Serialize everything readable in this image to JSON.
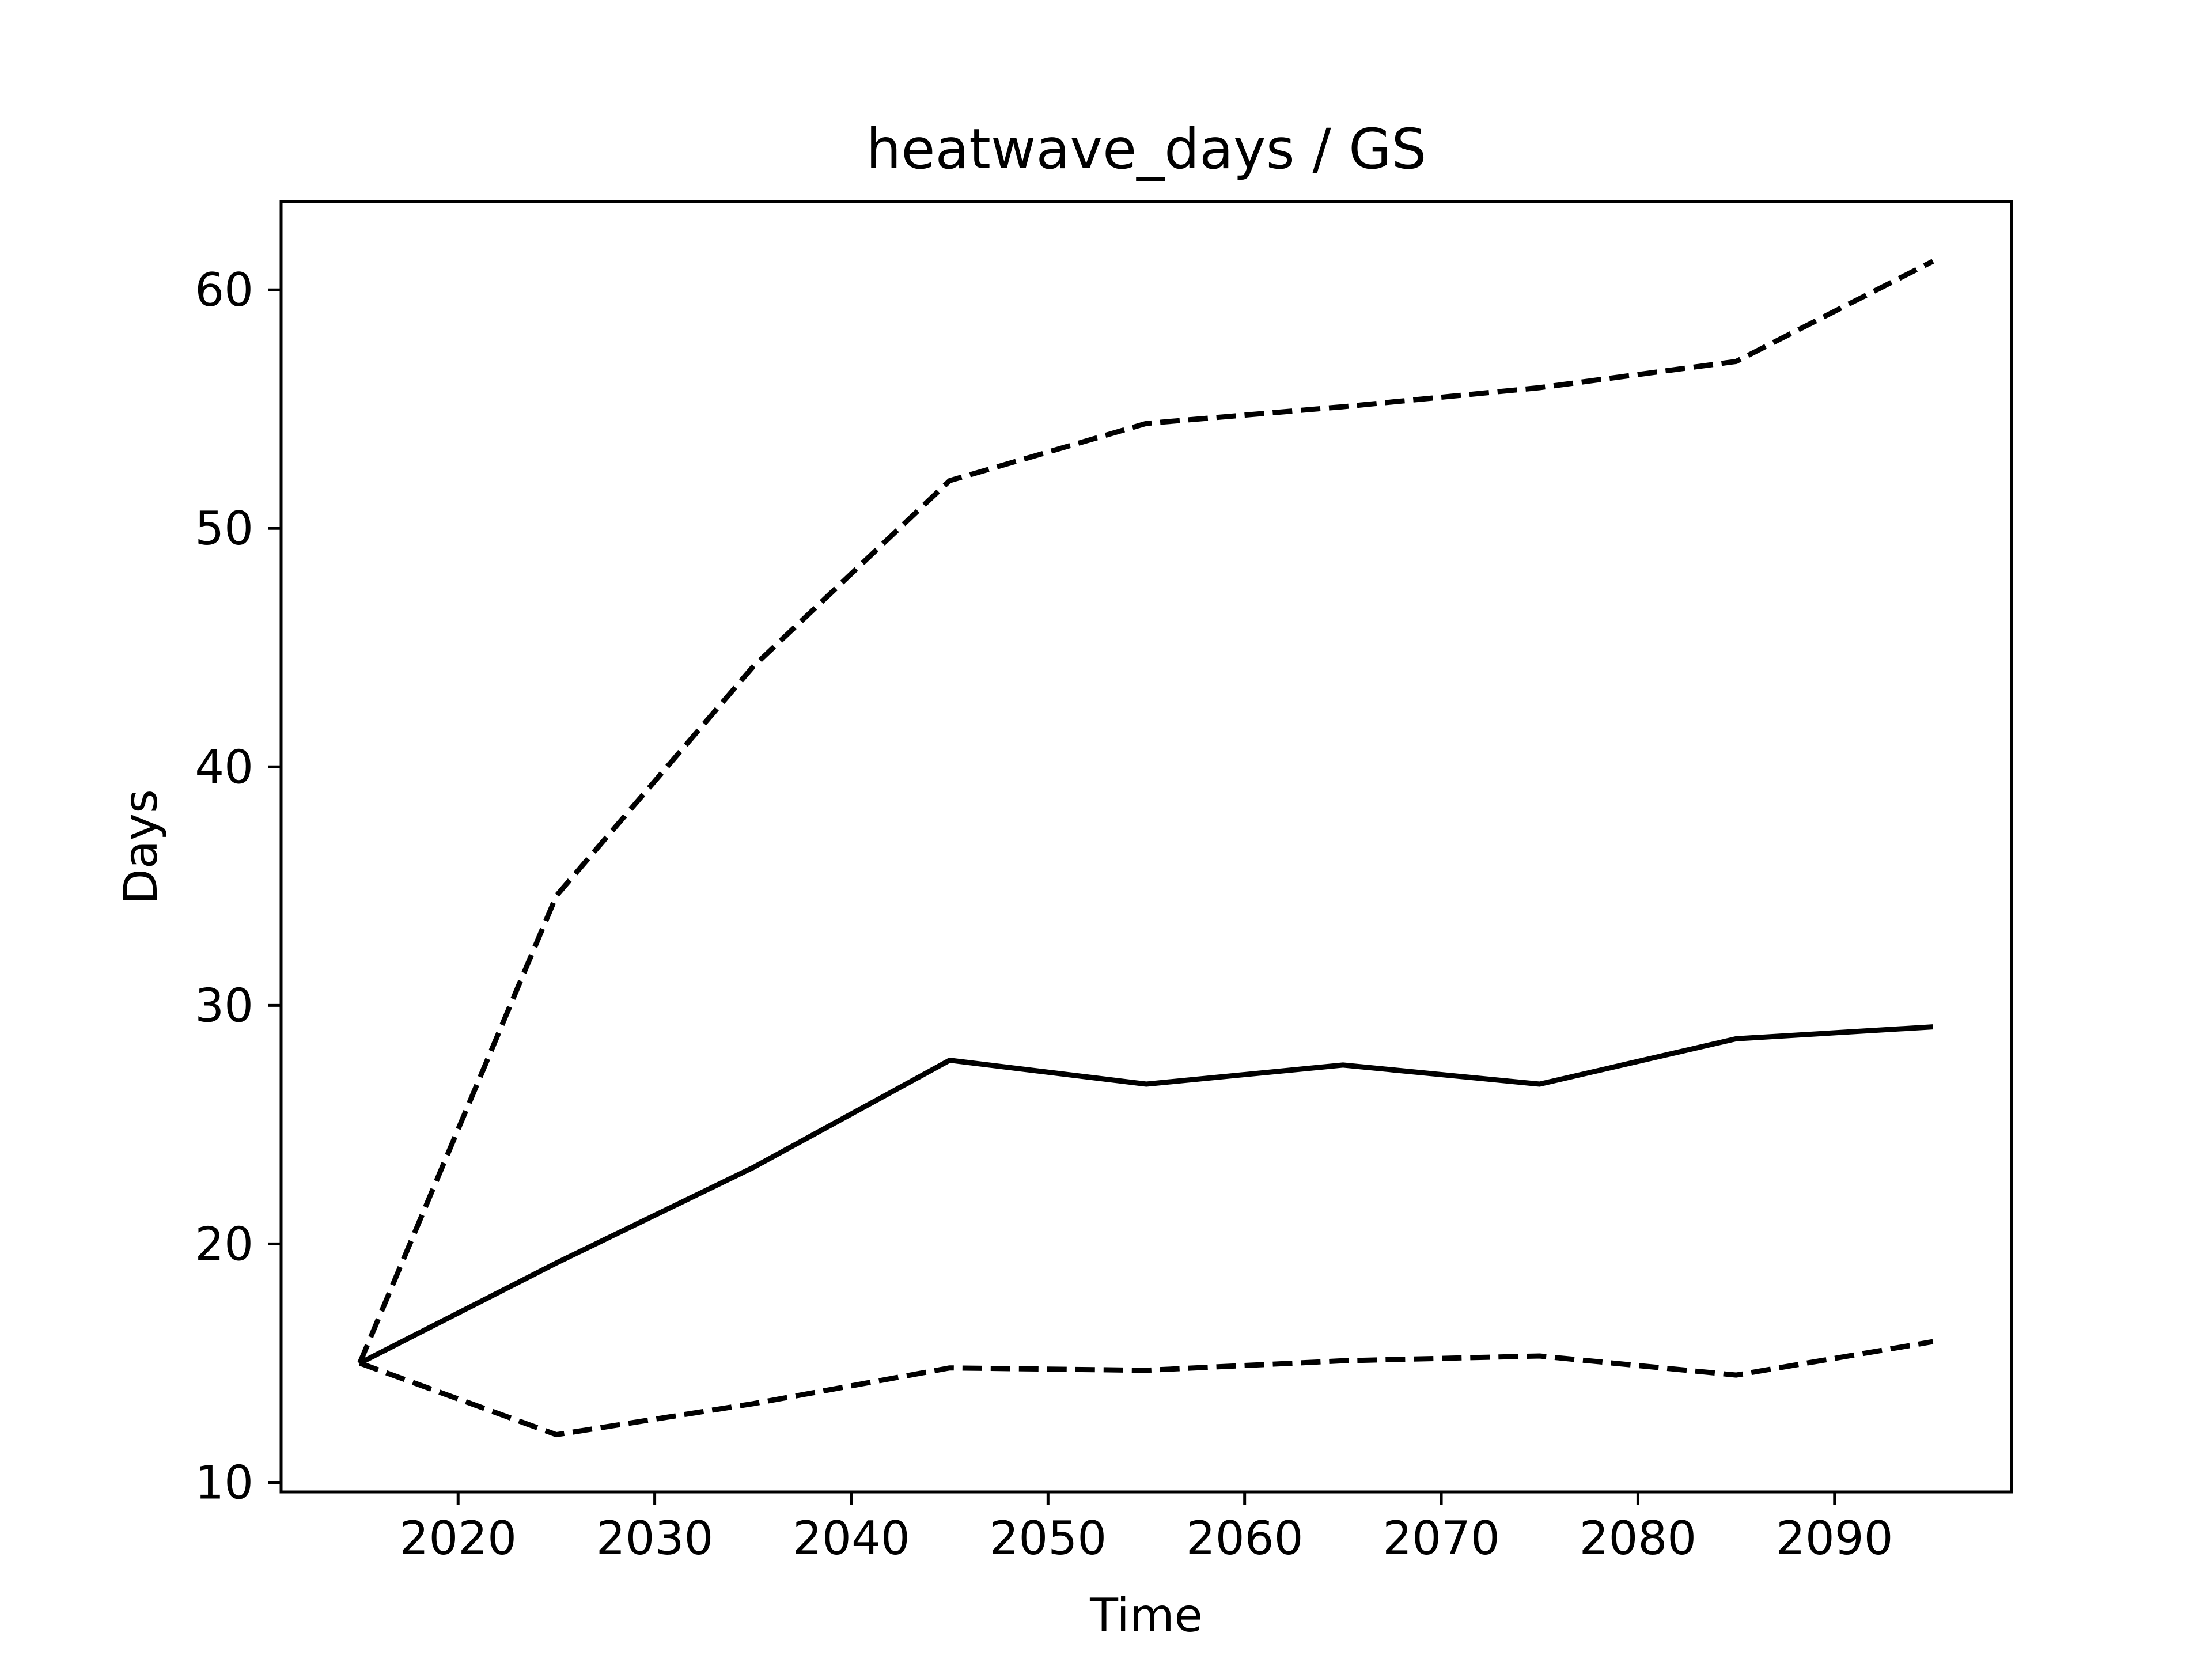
{
  "chart_data": {
    "type": "line",
    "title": "heatwave_days / GS",
    "xlabel": "Time",
    "ylabel": "Days",
    "x": [
      2015,
      2025,
      2035,
      2045,
      2055,
      2065,
      2075,
      2085,
      2095
    ],
    "xlim": [
      2011,
      2099
    ],
    "ylim": [
      9.6,
      63.7
    ],
    "x_ticks": [
      2020,
      2030,
      2040,
      2050,
      2060,
      2070,
      2080,
      2090
    ],
    "y_ticks": [
      10,
      20,
      30,
      40,
      50,
      60
    ],
    "grid": false,
    "series": [
      {
        "style": "solid",
        "color": "#000000",
        "values": [
          15.0,
          19.2,
          23.2,
          27.7,
          26.7,
          27.5,
          26.7,
          28.6,
          29.1
        ]
      },
      {
        "style": "dashed",
        "color": "#000000",
        "values": [
          15.0,
          34.6,
          44.2,
          52.0,
          54.4,
          55.1,
          55.9,
          57.0,
          61.2
        ]
      },
      {
        "style": "dashed",
        "color": "#000000",
        "values": [
          15.0,
          12.0,
          13.3,
          14.8,
          14.7,
          15.1,
          15.3,
          14.5,
          15.9
        ]
      }
    ]
  }
}
